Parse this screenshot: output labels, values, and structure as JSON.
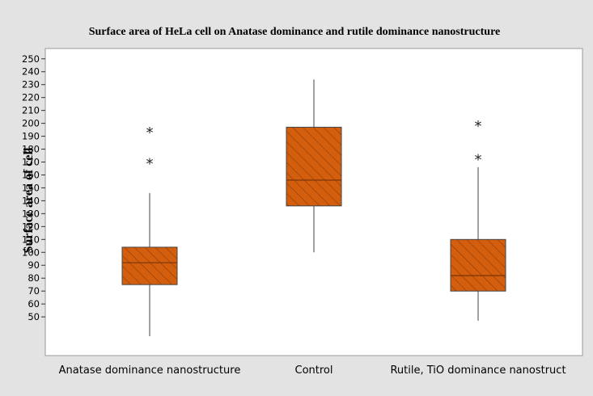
{
  "chart_data": {
    "type": "box",
    "title": "Surface area of HeLa cell on Anatase dominance and rutile dominance nanostructure",
    "ylabel": "Surface area of cell",
    "xlabel": "",
    "ylim": [
      20,
      258
    ],
    "yticks": [
      50,
      60,
      70,
      80,
      90,
      100,
      110,
      120,
      130,
      140,
      150,
      160,
      170,
      180,
      190,
      200,
      210,
      220,
      230,
      240,
      250
    ],
    "categories": [
      "Anatase dominance nanostructure",
      "Control",
      "Rutile, TiO dominance nanostruct"
    ],
    "boxes": [
      {
        "category": "Anatase dominance nanostructure",
        "whisker_low": 35,
        "q1": 75,
        "median": 92,
        "q3": 104,
        "whisker_high": 146,
        "outliers": [
          170,
          194
        ]
      },
      {
        "category": "Control",
        "whisker_low": 100,
        "q1": 136,
        "median": 156,
        "q3": 197,
        "whisker_high": 234,
        "outliers": []
      },
      {
        "category": "Rutile, TiO dominance nanostruct",
        "whisker_low": 47,
        "q1": 70,
        "median": 82,
        "q3": 110,
        "whisker_high": 166,
        "outliers": [
          173,
          199
        ]
      }
    ],
    "grid": false,
    "legend": "none",
    "box_color": "#d35f0e",
    "hatch_color": "#8a3a08",
    "outline_color": "#444444",
    "outlier_marker": "*"
  }
}
